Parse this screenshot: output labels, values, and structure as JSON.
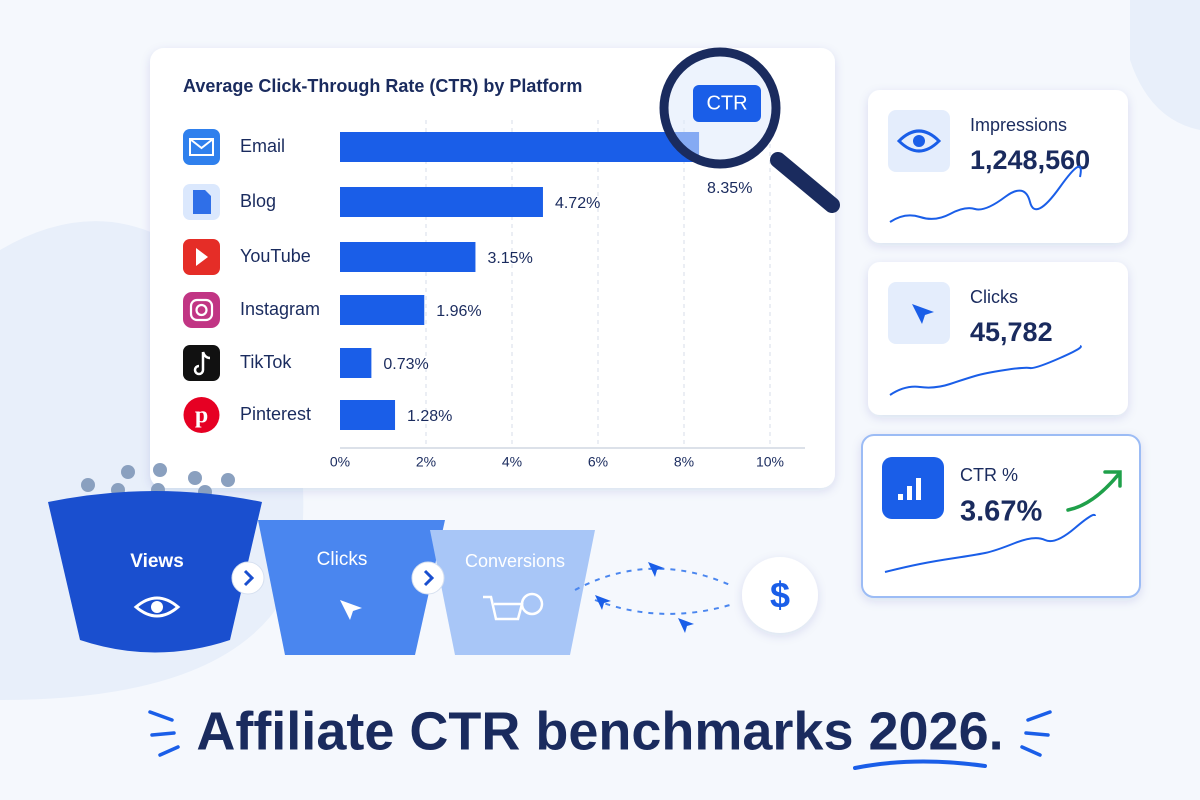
{
  "chart_data": {
    "type": "bar",
    "orientation": "horizontal",
    "title": "Average Click-Through Rate (CTR) by Platform",
    "categories": [
      "Email",
      "Blog",
      "YouTube",
      "Instagram",
      "TikTok",
      "Pinterest"
    ],
    "values": [
      8.35,
      4.72,
      3.15,
      1.96,
      0.73,
      1.28
    ],
    "value_labels": [
      "8.35%",
      "4.72%",
      "3.15%",
      "1.96%",
      "0.73%",
      "1.28%"
    ],
    "color": "#1a5ee8",
    "xlim": [
      0,
      10
    ],
    "xticks": [
      {
        "value": 0,
        "label": "0%"
      },
      {
        "value": 2,
        "label": "2%"
      },
      {
        "value": 4,
        "label": "4%"
      },
      {
        "value": 6,
        "label": "6%"
      },
      {
        "value": 8,
        "label": "8%"
      },
      {
        "value": 10,
        "label": "10%"
      }
    ],
    "grid": true
  },
  "badge": "CTR",
  "stats": [
    {
      "label": "Impressions",
      "value": "1,248,560"
    },
    {
      "label": "Clicks",
      "value": "45,782"
    },
    {
      "label": "CTR %",
      "value": "3.67%"
    }
  ],
  "funnel": [
    "Views",
    "Clicks",
    "Conversions"
  ],
  "headline": "Affiliate CTR benchmarks 2026."
}
